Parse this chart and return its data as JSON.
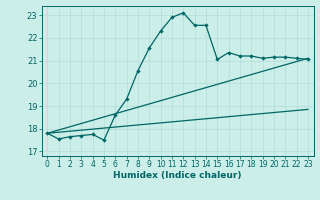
{
  "xlabel": "Humidex (Indice chaleur)",
  "bg_color": "#cceee8",
  "grid_color": "#b0ddd8",
  "line_color": "#006666",
  "xlim": [
    -0.5,
    23.5
  ],
  "ylim": [
    16.8,
    23.4
  ],
  "xticks": [
    0,
    1,
    2,
    3,
    4,
    5,
    6,
    7,
    8,
    9,
    10,
    11,
    12,
    13,
    14,
    15,
    16,
    17,
    18,
    19,
    20,
    21,
    22,
    23
  ],
  "yticks": [
    17,
    18,
    19,
    20,
    21,
    22,
    23
  ],
  "line1_x": [
    0,
    1,
    2,
    3,
    4,
    5,
    6,
    7,
    8,
    9,
    10,
    11,
    12,
    13,
    14,
    15,
    16,
    17,
    18,
    19,
    20,
    21,
    22,
    23
  ],
  "line1_y": [
    17.8,
    17.55,
    17.65,
    17.7,
    17.75,
    17.5,
    18.6,
    19.3,
    20.55,
    21.55,
    22.3,
    22.9,
    23.1,
    22.55,
    22.55,
    21.05,
    21.35,
    21.2,
    21.2,
    21.1,
    21.15,
    21.15,
    21.1,
    21.05
  ],
  "line2_x": [
    0,
    23
  ],
  "line2_y": [
    17.8,
    18.85
  ],
  "line3_x": [
    0,
    23
  ],
  "line3_y": [
    17.8,
    21.1
  ]
}
